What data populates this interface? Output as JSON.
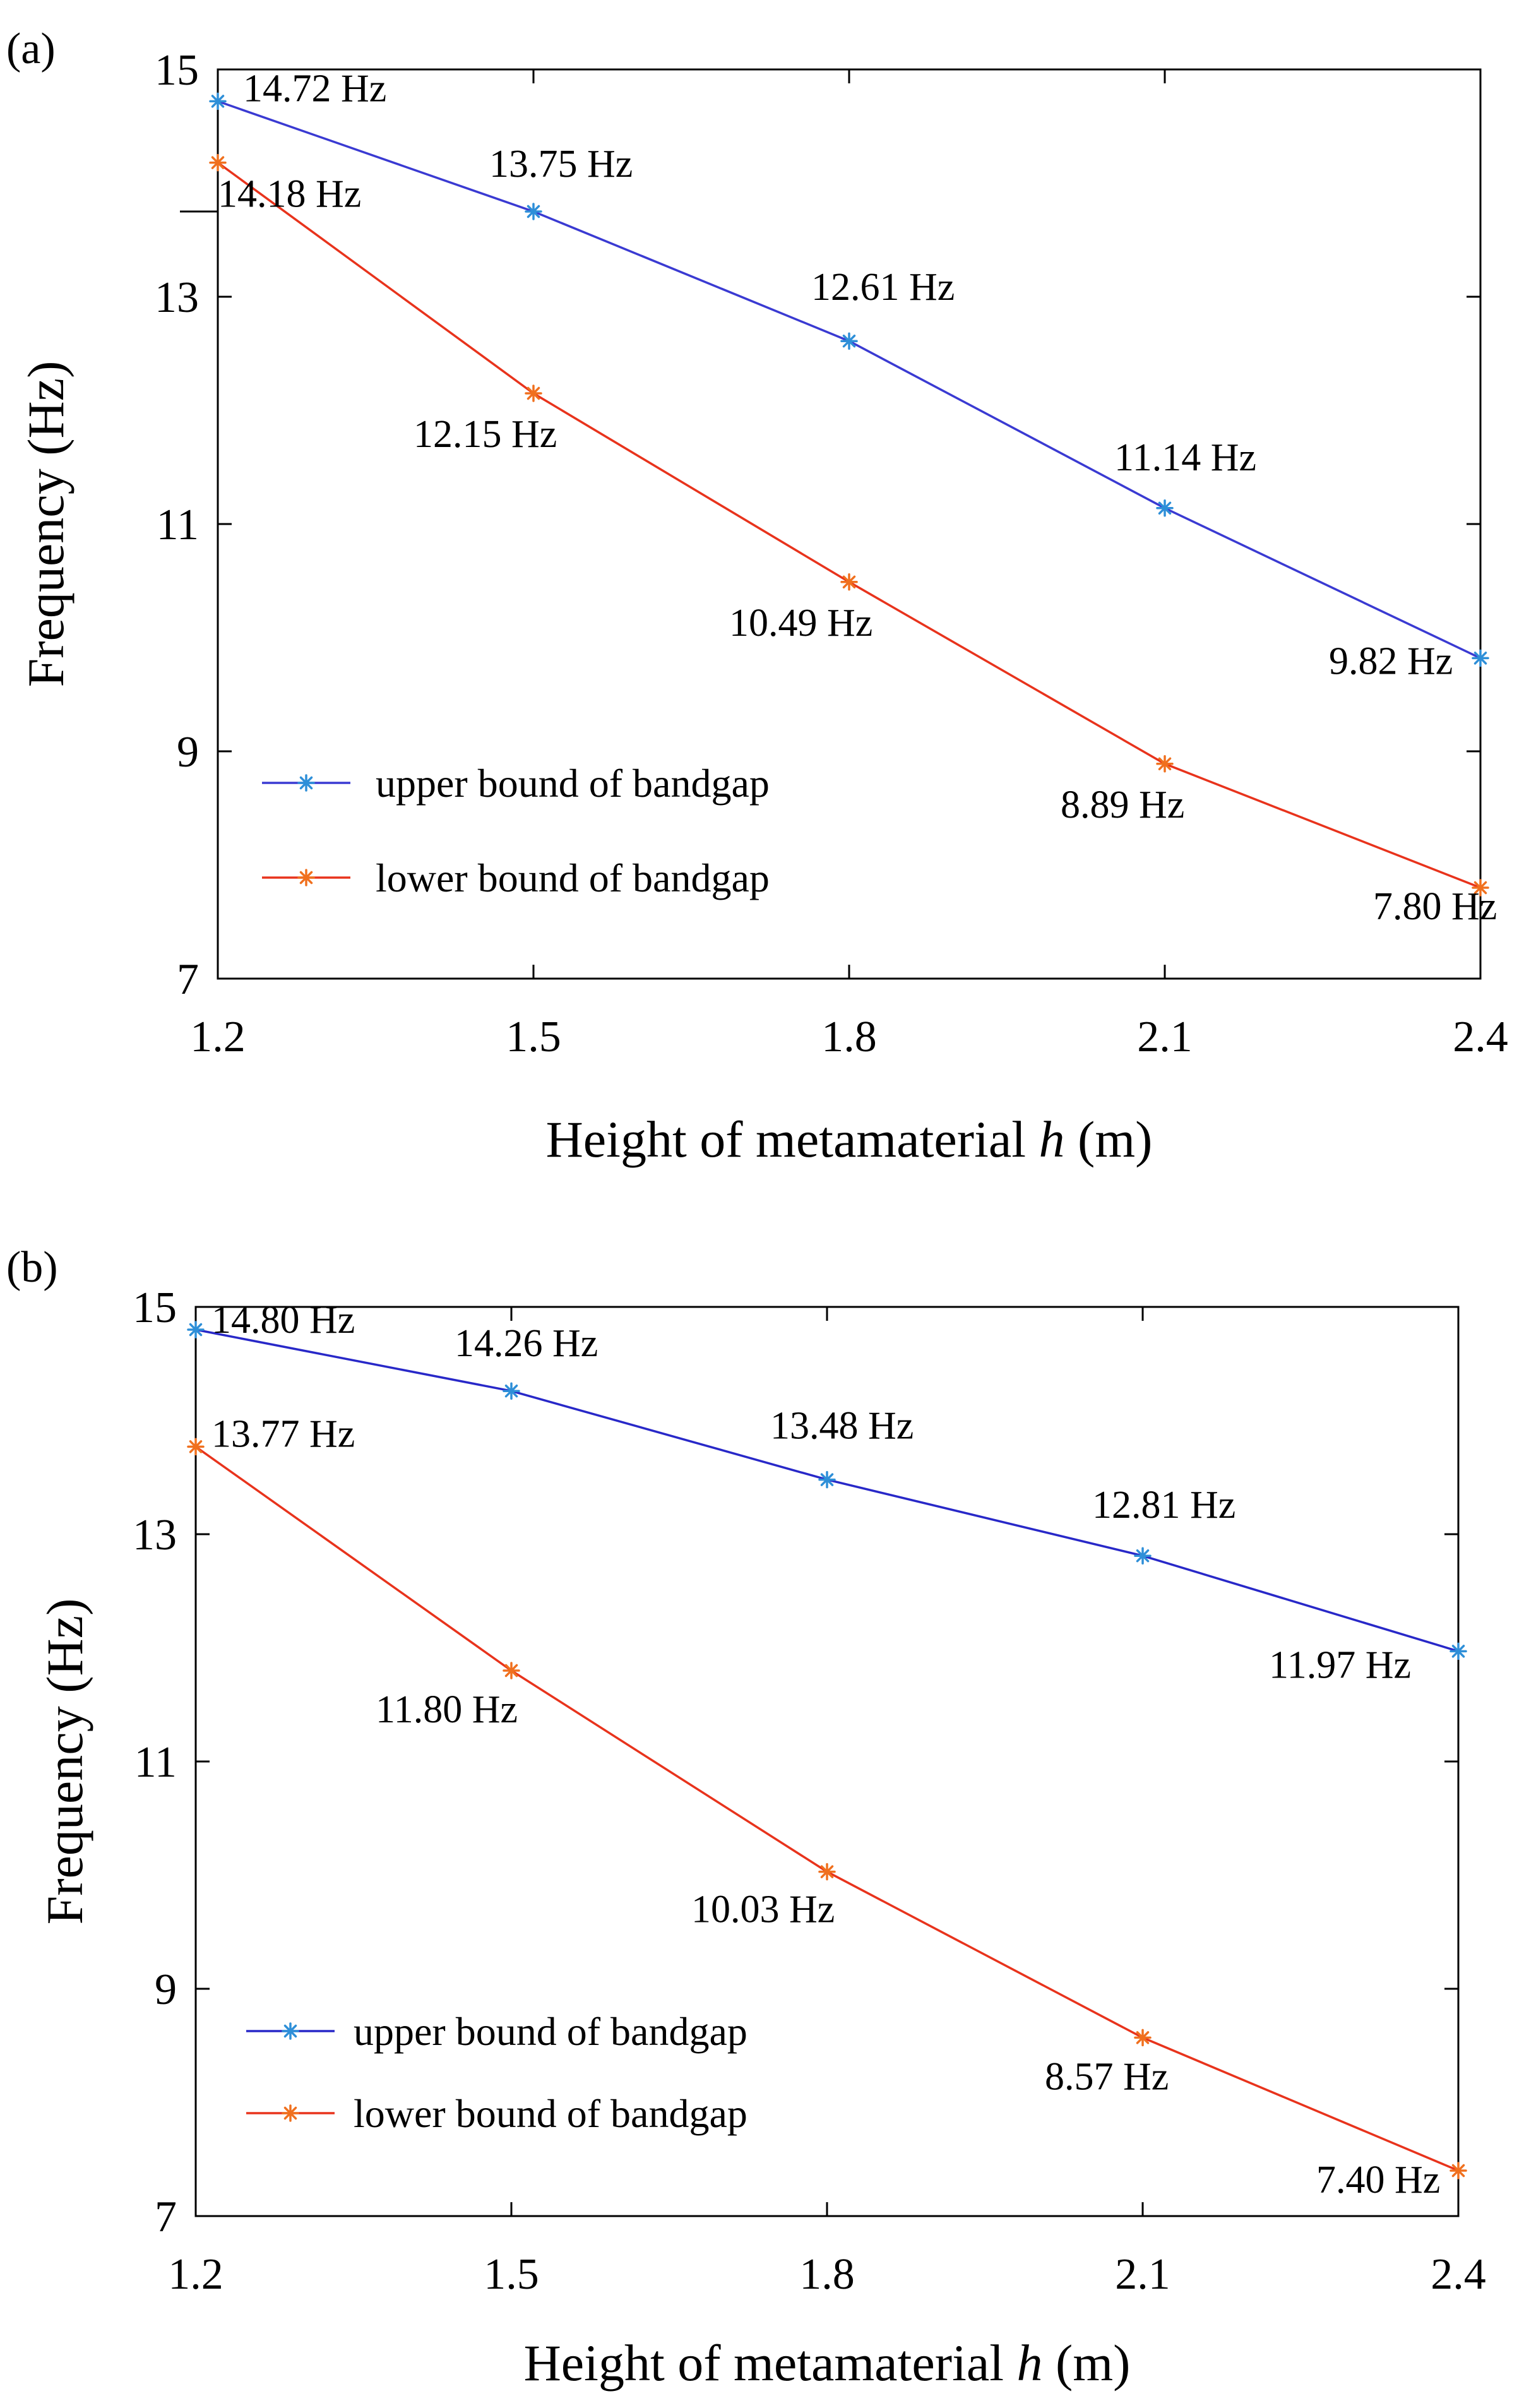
{
  "colors": {
    "upper_a": "#3a3ad2",
    "upper_b": "#2828c8",
    "lower": "#e8331c",
    "upper_marker": "#2e8fd8",
    "lower_marker": "#f0701e"
  },
  "chart_data": [
    {
      "panel_label": "(a)",
      "type": "line",
      "xlabel_prefix": "Height of metamaterial ",
      "xlabel_var": "h",
      "xlabel_suffix": " (m)",
      "ylabel": "Frequency (Hz)",
      "xlim": [
        1.2,
        2.4
      ],
      "ylim": [
        7,
        15
      ],
      "x_ticks": [
        1.2,
        1.5,
        1.8,
        2.1,
        2.4
      ],
      "x_tick_labels": [
        "1.2",
        "1.5",
        "1.8",
        "2.1",
        "2.4"
      ],
      "y_ticks": [
        7,
        9,
        11,
        13,
        15
      ],
      "y_tick_labels": [
        "7",
        "9",
        "11",
        "13",
        "15"
      ],
      "x": [
        1.2,
        1.5,
        1.8,
        2.1,
        2.4
      ],
      "series": [
        {
          "name": "upper bound of bandgap",
          "values": [
            14.72,
            13.75,
            12.61,
            11.14,
            9.82
          ],
          "labels": [
            "14.72 Hz",
            "13.75 Hz",
            "12.61 Hz",
            "11.14 Hz",
            "9.82 Hz"
          ]
        },
        {
          "name": "lower bound of bandgap",
          "values": [
            14.18,
            12.15,
            10.49,
            8.89,
            7.8
          ],
          "labels": [
            "14.18 Hz",
            "12.15 Hz",
            "10.49 Hz",
            "8.89 Hz",
            "7.80 Hz"
          ]
        }
      ]
    },
    {
      "panel_label": "(b)",
      "type": "line",
      "xlabel_prefix": "Height of metamaterial ",
      "xlabel_var": "h",
      "xlabel_suffix": " (m)",
      "ylabel": "Frequency (Hz)",
      "xlim": [
        1.2,
        2.4
      ],
      "ylim": [
        7,
        15
      ],
      "x_ticks": [
        1.2,
        1.5,
        1.8,
        2.1,
        2.4
      ],
      "x_tick_labels": [
        "1.2",
        "1.5",
        "1.8",
        "2.1",
        "2.4"
      ],
      "y_ticks": [
        7,
        9,
        11,
        13,
        15
      ],
      "y_tick_labels": [
        "7",
        "9",
        "11",
        "13",
        "15"
      ],
      "x": [
        1.2,
        1.5,
        1.8,
        2.1,
        2.4
      ],
      "series": [
        {
          "name": "upper bound of bandgap",
          "values": [
            14.8,
            14.26,
            13.48,
            12.81,
            11.97
          ],
          "labels": [
            "14.80 Hz",
            "14.26 Hz",
            "13.48 Hz",
            "12.81 Hz",
            "11.97 Hz"
          ]
        },
        {
          "name": "lower bound of bandgap",
          "values": [
            13.77,
            11.8,
            10.03,
            8.57,
            7.4
          ],
          "labels": [
            "13.77 Hz",
            "11.80 Hz",
            "10.03 Hz",
            "8.57 Hz",
            "7.40 Hz"
          ]
        }
      ]
    }
  ]
}
